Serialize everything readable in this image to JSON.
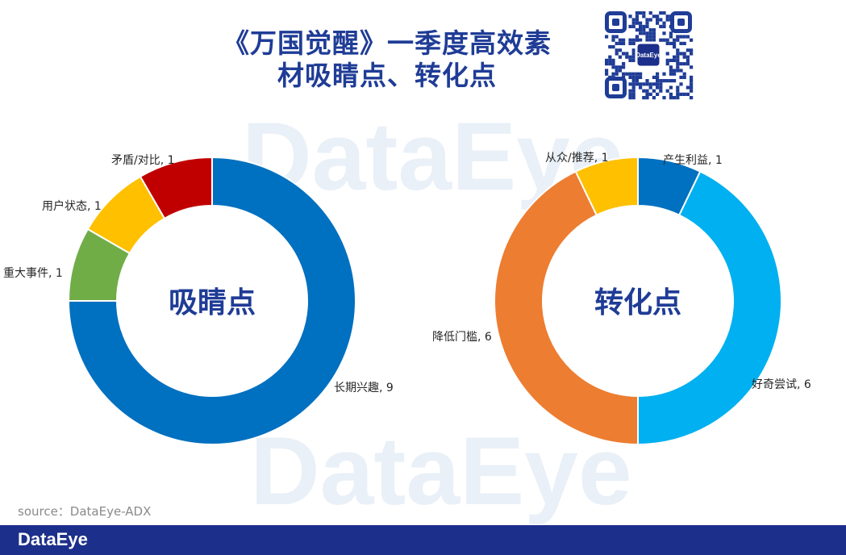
{
  "header": {
    "title_line1": "《万国觉醒》一季度高效素",
    "title_line2": "材吸睛点、转化点"
  },
  "watermark_text": "DataEye",
  "qr_badge": "DataEye",
  "source_text": "source：DataEye-ADX",
  "footer": {
    "logo": "DataEye"
  },
  "colors": {
    "title": "#1f3c96",
    "footer_bg": "#1c2f8a",
    "dark_blue": "#0070c0",
    "light_blue": "#00b0f0",
    "orange": "#ed7d31",
    "yellow": "#ffc000",
    "green": "#70ad47",
    "red": "#c00000"
  },
  "chart_data": [
    {
      "type": "pie",
      "donut": true,
      "center_label": "吸睛点",
      "slices": [
        {
          "label": "长期兴趣",
          "value": 9,
          "color": "#0070c0",
          "data_label": "长期兴趣, 9"
        },
        {
          "label": "重大事件",
          "value": 1,
          "color": "#70ad47",
          "data_label": "重大事件, 1"
        },
        {
          "label": "用户状态",
          "value": 1,
          "color": "#ffc000",
          "data_label": "用户状态, 1"
        },
        {
          "label": "矛盾/对比",
          "value": 1,
          "color": "#c00000",
          "data_label": "矛盾/对比, 1"
        }
      ]
    },
    {
      "type": "pie",
      "donut": true,
      "center_label": "转化点",
      "slices": [
        {
          "label": "产生利益",
          "value": 1,
          "color": "#0070c0",
          "data_label": "产生利益, 1"
        },
        {
          "label": "好奇尝试",
          "value": 6,
          "color": "#00b0f0",
          "data_label": "好奇尝试, 6"
        },
        {
          "label": "降低门槛",
          "value": 6,
          "color": "#ed7d31",
          "data_label": "降低门槛, 6"
        },
        {
          "label": "从众/推荐",
          "value": 1,
          "color": "#ffc000",
          "data_label": "从众/推荐, 1"
        }
      ]
    }
  ]
}
